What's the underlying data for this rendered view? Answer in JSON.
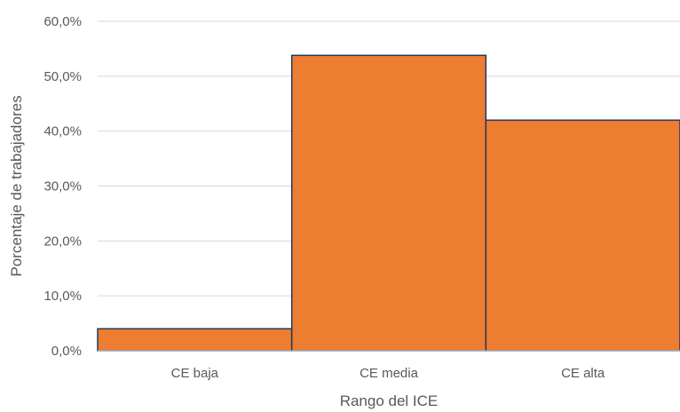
{
  "chart_data": {
    "type": "bar",
    "title": "",
    "xlabel": "Rango del ICE",
    "ylabel": "Porcentaje de trabajadores",
    "categories": [
      "CE baja",
      "CE media",
      "CE alta"
    ],
    "values": [
      4.0,
      53.8,
      42.0
    ],
    "ylim": [
      0,
      60
    ],
    "yticks": [
      "0,0%",
      "10,0%",
      "20,0%",
      "30,0%",
      "40,0%",
      "50,0%",
      "60,0%"
    ],
    "grid": true,
    "bar_color": "#ED7D31",
    "bar_edge_color": "#1F3A5F"
  }
}
